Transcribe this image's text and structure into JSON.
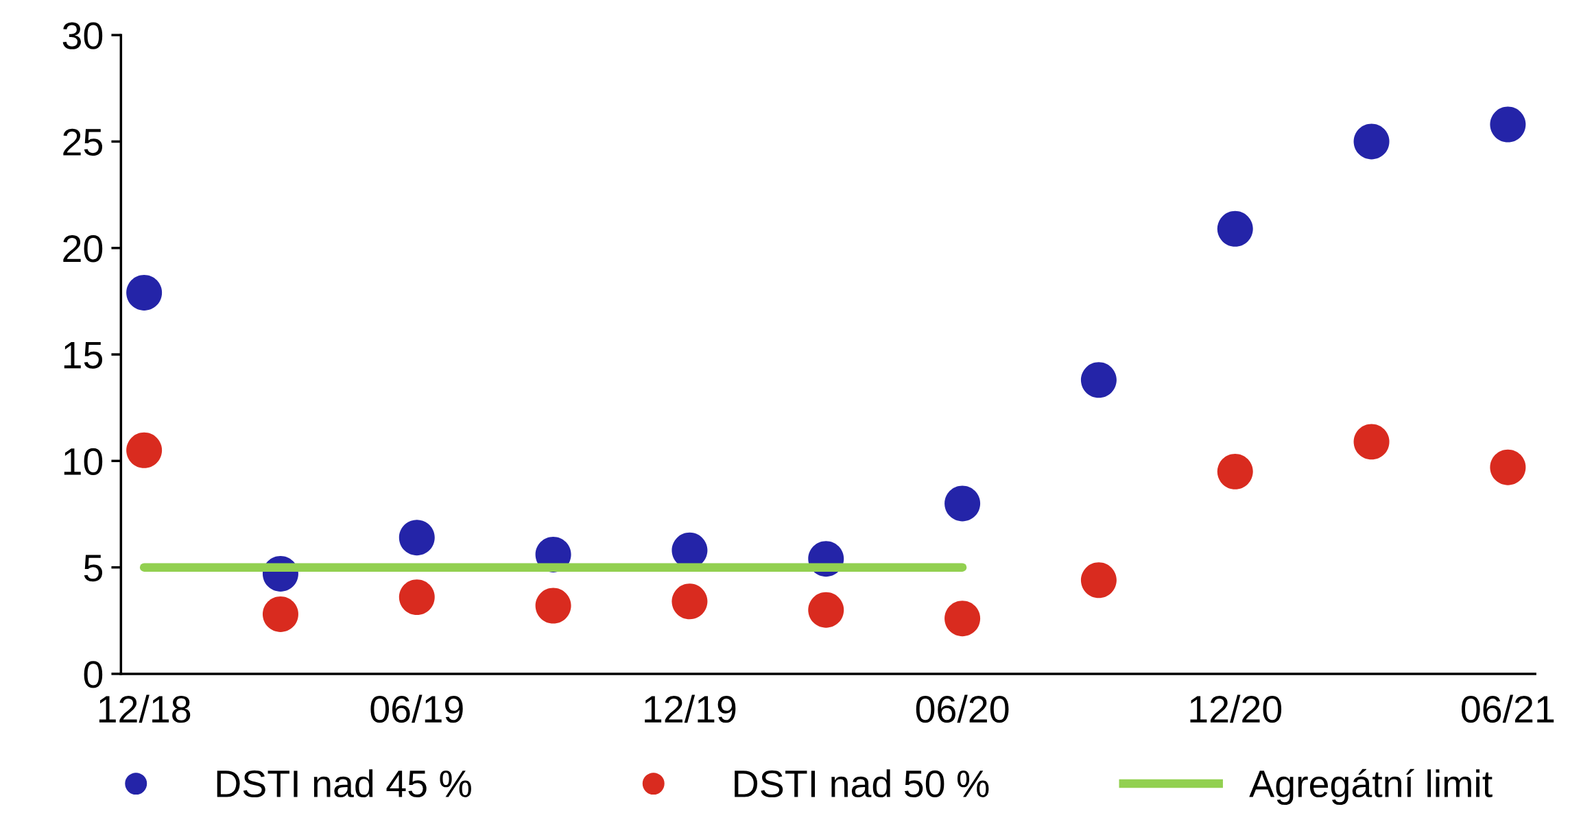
{
  "chart_data": {
    "type": "scatter",
    "categories": [
      "12/18",
      null,
      "06/19",
      null,
      "12/19",
      null,
      "06/20",
      null,
      "12/20",
      null,
      "06/21"
    ],
    "series": [
      {
        "name": "DSTI nad 45 %",
        "color": "#2424a8",
        "values": [
          17.9,
          4.7,
          6.4,
          5.6,
          5.8,
          5.4,
          8.0,
          13.8,
          20.9,
          25.0,
          25.8
        ]
      },
      {
        "name": "DSTI nad 50 %",
        "color": "#d92b1f",
        "values": [
          10.5,
          2.8,
          3.6,
          3.2,
          3.4,
          3.0,
          2.6,
          4.4,
          9.5,
          10.9,
          9.7
        ]
      },
      {
        "name": "Agregátní limit",
        "color": "#92d050",
        "type": "line",
        "marker": "none",
        "values": [
          5,
          5,
          5,
          5,
          5,
          5,
          5,
          null,
          null,
          null,
          null
        ]
      }
    ],
    "ylim": [
      0,
      30
    ],
    "yticks": [
      0,
      5,
      10,
      15,
      20,
      25,
      30
    ],
    "grid": false,
    "legend": "bottom",
    "marker": "circle",
    "line_style": "solid"
  }
}
